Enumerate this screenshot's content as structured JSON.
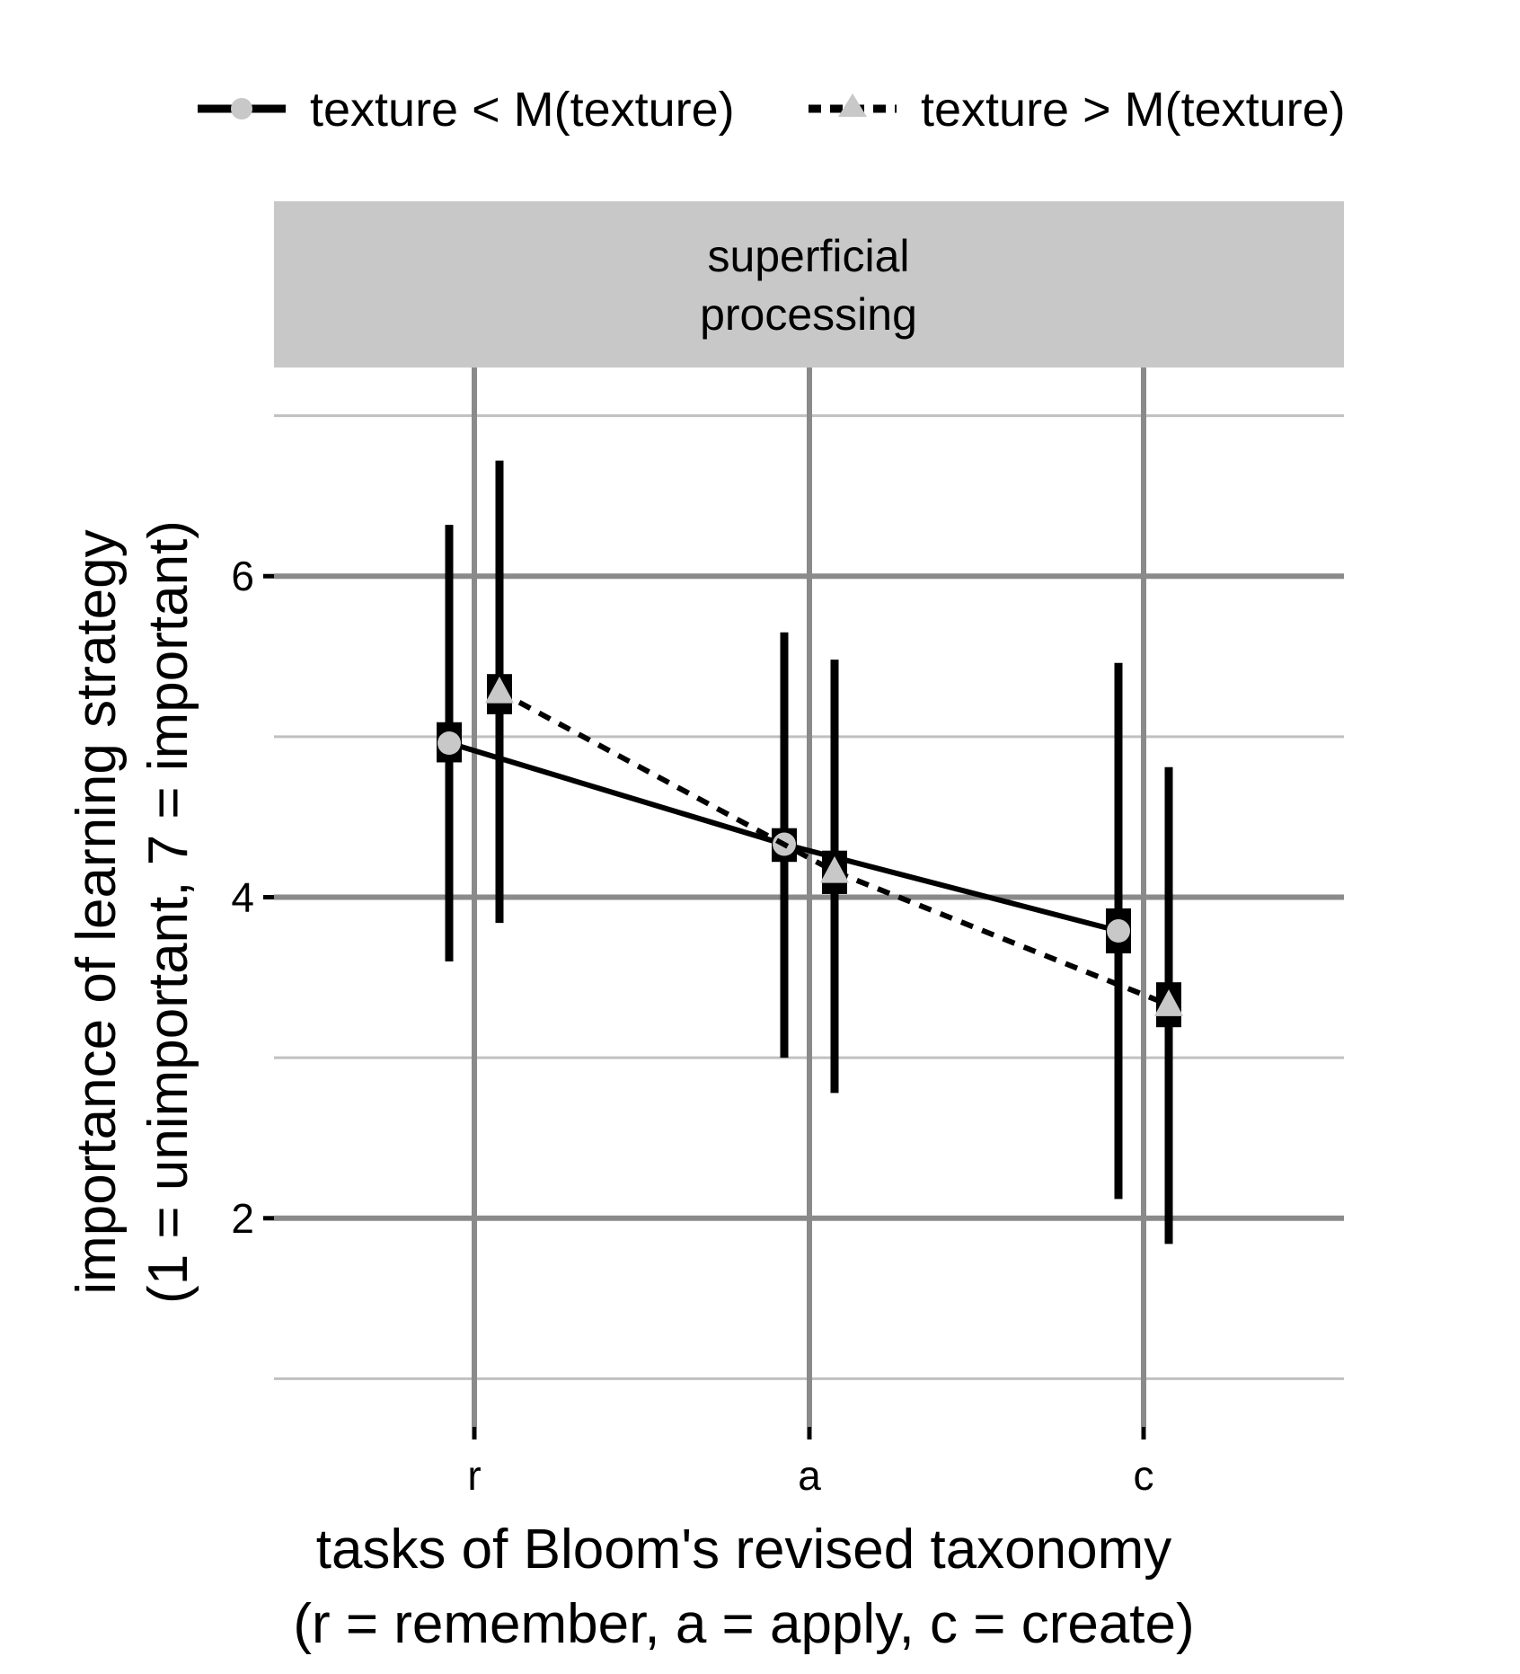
{
  "chart_data": {
    "type": "line",
    "facet_label": [
      "superficial",
      "processing"
    ],
    "categories": [
      "r",
      "a",
      "c"
    ],
    "x_axis_title": [
      "tasks of Bloom's revised taxonomy",
      "(r = remember, a = apply, c = create)"
    ],
    "y_axis_title": [
      "importance of learning strategy",
      "(1 = unimportant, 7 = important)"
    ],
    "y_ticks": [
      2,
      4,
      6
    ],
    "y_minor_gridlines": [
      1,
      3,
      5,
      7
    ],
    "ylim": [
      0.7,
      7.3
    ],
    "grid": true,
    "legend_position": "top",
    "series": [
      {
        "name": "texture < M(texture)",
        "line": "solid",
        "marker": "circle",
        "color": "#000000",
        "marker_color": "#c8c8c8",
        "values": [
          4.96,
          4.33,
          3.79
        ],
        "ci_low": [
          3.6,
          3.0,
          2.12
        ],
        "ci_high": [
          6.32,
          5.65,
          5.46
        ],
        "se_low": [
          4.84,
          4.22,
          3.65
        ],
        "se_high": [
          5.09,
          4.43,
          3.93
        ]
      },
      {
        "name": "texture > M(texture)",
        "line": "dashed",
        "marker": "triangle",
        "color": "#000000",
        "marker_color": "#c8c8c8",
        "values": [
          5.28,
          4.16,
          3.33
        ],
        "ci_low": [
          3.84,
          2.78,
          1.84
        ],
        "ci_high": [
          6.72,
          5.48,
          4.81
        ],
        "se_low": [
          5.14,
          4.02,
          3.19
        ],
        "se_high": [
          5.39,
          4.29,
          3.47
        ]
      }
    ]
  },
  "colors": {
    "strip_background": "#c8c8c8",
    "grid_major": "#8a8a8a",
    "grid_minor": "#c0c0c0",
    "marker_fill": "#c8c8c8"
  }
}
